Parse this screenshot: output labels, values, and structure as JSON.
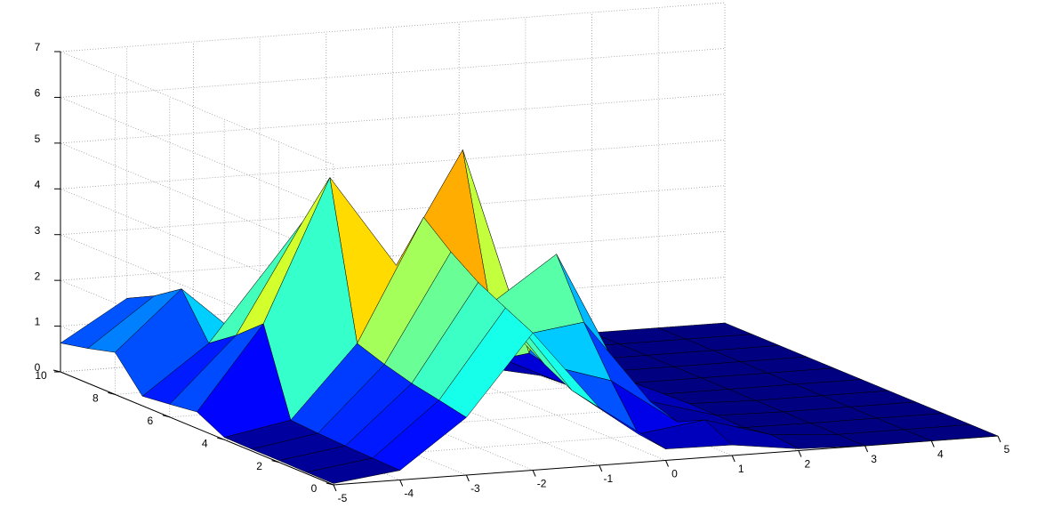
{
  "chart_data": {
    "type": "surface",
    "colormap": "jet",
    "grid": true,
    "x": [
      -5,
      -4,
      -3,
      -2,
      -1,
      0,
      1,
      2,
      3,
      4,
      5
    ],
    "y": [
      0,
      1,
      2,
      3,
      4,
      5,
      6,
      7,
      8,
      9,
      10
    ],
    "z": [
      [
        0.03,
        0.21,
        1.26,
        3.0,
        1.26,
        0.25,
        0.23,
        0.04,
        0,
        0,
        0
      ],
      [
        0.03,
        0.23,
        1.39,
        3.3,
        1.39,
        0.33,
        0.53,
        0.1,
        0,
        0,
        0
      ],
      [
        0.04,
        0.25,
        1.51,
        3.61,
        1.71,
        1.25,
        0.24,
        0.01,
        0,
        0,
        0
      ],
      [
        0.04,
        0.28,
        1.68,
        4.03,
        2.08,
        2.28,
        0.44,
        0.03,
        0,
        0,
        0
      ],
      [
        0.05,
        0.32,
        1.89,
        4.54,
        2.53,
        3.52,
        0.69,
        0.04,
        0,
        0,
        0
      ],
      [
        0.36,
        2.18,
        5.27,
        3.24,
        5.66,
        1.11,
        0.08,
        0,
        0,
        0,
        0
      ],
      [
        0.28,
        1.68,
        4.05,
        2.38,
        3.78,
        0.74,
        0.05,
        0,
        0,
        0,
        0
      ],
      [
        0.21,
        1.26,
        3.02,
        1.56,
        1.71,
        0.33,
        0.02,
        0,
        0,
        0,
        0
      ],
      [
        0.92,
        2.2,
        0.92,
        0.25,
        0.52,
        0.1,
        0,
        0,
        0,
        0,
        0
      ],
      [
        0.76,
        1.8,
        0.76,
        0.17,
        0.22,
        0.04,
        0,
        0,
        0,
        0,
        0
      ],
      [
        0.63,
        1.5,
        0.63,
        0.13,
        0.12,
        0.02,
        0,
        0,
        0,
        0,
        0
      ]
    ],
    "xlim": [
      -5,
      5
    ],
    "ylim": [
      0,
      10
    ],
    "zlim": [
      0,
      7
    ],
    "xticks": [
      -5,
      -4,
      -3,
      -2,
      -1,
      0,
      1,
      2,
      3,
      4,
      5
    ],
    "yticks": [
      0,
      2,
      4,
      6,
      8,
      10
    ],
    "zticks": [
      0,
      1,
      2,
      3,
      4,
      5,
      6,
      7
    ]
  }
}
